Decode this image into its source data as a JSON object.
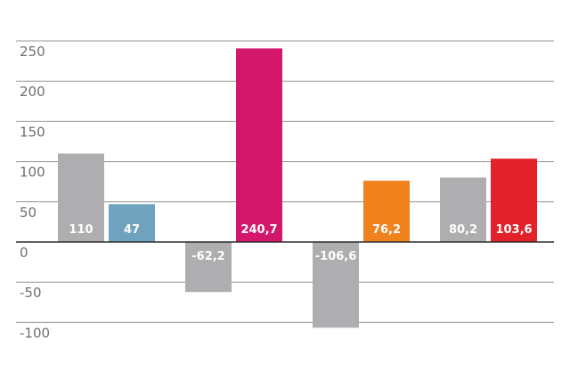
{
  "chart_data": {
    "type": "bar",
    "title": "",
    "xlabel": "",
    "ylabel": "",
    "ylim": [
      -100,
      250
    ],
    "yticks": [
      250,
      200,
      150,
      100,
      50,
      0,
      -50,
      -100
    ],
    "ytick_labels": [
      "250",
      "200",
      "150",
      "100",
      "50",
      "0",
      "-50",
      "-100"
    ],
    "grid": true,
    "legend": "none",
    "groups": [
      {
        "bars": [
          {
            "value": 110,
            "label": "110",
            "color": "#aeaeb0"
          },
          {
            "value": 47,
            "label": "47",
            "color": "#6fa3bd"
          }
        ]
      },
      {
        "bars": [
          {
            "value": -62.2,
            "label": "-62,2",
            "color": "#aeaeb0"
          },
          {
            "value": 240.7,
            "label": "240,7",
            "color": "#d3176a"
          }
        ]
      },
      {
        "bars": [
          {
            "value": -106.6,
            "label": "-106,6",
            "color": "#aeaeb0"
          },
          {
            "value": 76.2,
            "label": "76,2",
            "color": "#f0821e"
          }
        ]
      },
      {
        "bars": [
          {
            "value": 80.2,
            "label": "80,2",
            "color": "#aeaeb0"
          },
          {
            "value": 103.6,
            "label": "103,6",
            "color": "#e3212b"
          }
        ]
      }
    ]
  }
}
